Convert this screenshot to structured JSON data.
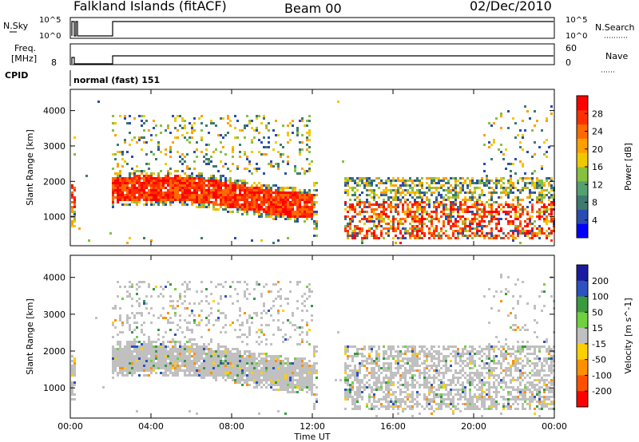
{
  "header": {
    "station": "Falkland Islands (fitACF)",
    "beam": "Beam 00",
    "date": "02/Dec/2010"
  },
  "panels": {
    "nsky": {
      "label": "N.Sky",
      "ticks": [
        "10^5",
        "10^0"
      ]
    },
    "nsearch": {
      "label": "N.Search",
      "ticks": [
        "10^5",
        "10^0"
      ]
    },
    "freq": {
      "label_top": "Freq.",
      "label_unit": "[MHz]",
      "ticks": [
        "8"
      ]
    },
    "nave": {
      "label": "Nave",
      "ticks": [
        "60",
        "0"
      ]
    },
    "cpid": {
      "label": "CPID",
      "mode": "normal (fast) 151"
    }
  },
  "x_axis": {
    "label": "Time UT",
    "ticks": [
      "00:00",
      "04:00",
      "08:00",
      "12:00",
      "16:00",
      "20:00",
      "00:00"
    ]
  },
  "chart_data": [
    {
      "type": "heatmap",
      "title": "",
      "xlabel": "Time UT",
      "ylabel": "Slant Range [km]",
      "x_ticks": [
        "00:00",
        "04:00",
        "08:00",
        "12:00",
        "16:00",
        "20:00",
        "00:00"
      ],
      "y_ticks": [
        1000,
        2000,
        3000,
        4000
      ],
      "colorbar": {
        "label": "Power [dB]",
        "ticks": [
          4,
          8,
          12,
          16,
          20,
          24,
          28
        ],
        "colors": [
          "#0000ff",
          "#2a4cb0",
          "#3d7a70",
          "#55a070",
          "#88c040",
          "#f0c800",
          "#ffa000",
          "#ff6a00",
          "#ff3000",
          "#ff0000"
        ]
      }
    },
    {
      "type": "heatmap",
      "title": "",
      "xlabel": "Time UT",
      "ylabel": "Slant Range [km]",
      "x_ticks": [
        "00:00",
        "04:00",
        "08:00",
        "12:00",
        "16:00",
        "20:00",
        "00:00"
      ],
      "y_ticks": [
        1000,
        2000,
        3000,
        4000
      ],
      "colorbar": {
        "label": "Velocity [m s^-1]",
        "ticks": [
          200,
          100,
          50,
          15,
          -15,
          -50,
          -100,
          -200
        ],
        "colors": [
          "#1a1aa0",
          "#2c52c0",
          "#3a9a40",
          "#70d040",
          "#c0c0c0",
          "#ffd000",
          "#ff9000",
          "#ff5000",
          "#ff0000"
        ]
      }
    }
  ]
}
